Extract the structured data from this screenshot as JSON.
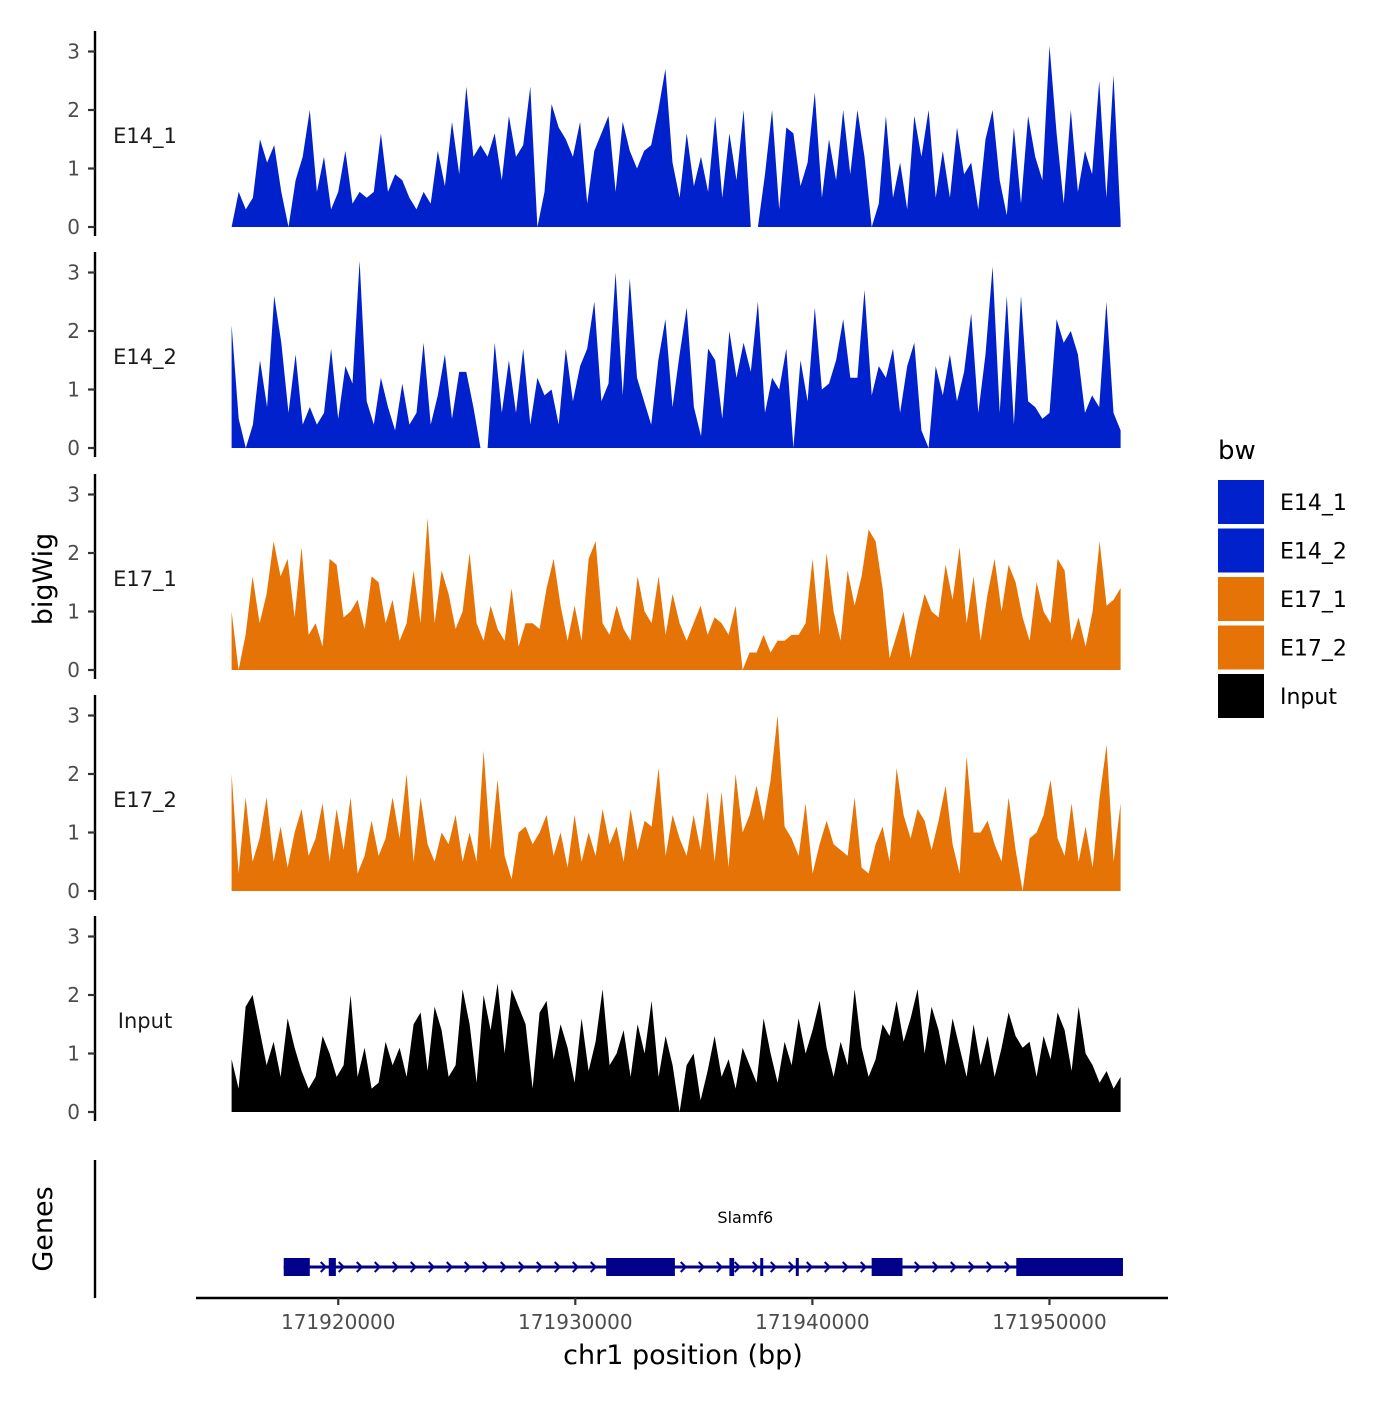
{
  "chart_data": {
    "type": "area",
    "title": "",
    "xlabel": "chr1 position (bp)",
    "ylabel": "bigWig",
    "genes_panel_label": "Genes",
    "xlim": [
      171914000,
      171955000
    ],
    "x_ticks": [
      171920000,
      171930000,
      171940000,
      171950000
    ],
    "x_tick_labels": [
      "171920000",
      "171930000",
      "171940000",
      "171950000"
    ],
    "ylim": [
      0,
      3.3
    ],
    "y_ticks": [
      0,
      1,
      2,
      3
    ],
    "y_tick_labels": [
      "0",
      "1",
      "2",
      "3"
    ],
    "x_range_data": [
      171915500,
      171953000
    ],
    "legend": {
      "title": "bw",
      "position": "right",
      "entries": [
        {
          "name": "E14_1",
          "color": "#0021CC"
        },
        {
          "name": "E14_2",
          "color": "#0021CC"
        },
        {
          "name": "E17_1",
          "color": "#E67305"
        },
        {
          "name": "E17_2",
          "color": "#E67305"
        },
        {
          "name": "Input",
          "color": "#000000"
        }
      ]
    },
    "series": [
      {
        "name": "E14_1",
        "color": "#0021CC",
        "values": [
          0,
          0.6,
          0.3,
          0.5,
          1.5,
          1.1,
          1.4,
          0.6,
          0,
          0.8,
          1.2,
          2.0,
          0.6,
          1.2,
          0.3,
          0.6,
          1.3,
          0.4,
          0.6,
          0.5,
          0.6,
          1.6,
          0.6,
          0.9,
          0.8,
          0.5,
          0.3,
          0.6,
          0.4,
          1.3,
          0.7,
          1.8,
          0.9,
          2.4,
          1.2,
          1.4,
          1.2,
          1.6,
          0.8,
          1.9,
          1.2,
          1.4,
          2.4,
          0,
          0.6,
          2.1,
          1.7,
          1.5,
          1.2,
          1.8,
          0.4,
          1.3,
          1.6,
          1.9,
          0.6,
          1.8,
          1.3,
          1.0,
          1.3,
          1.4,
          2.0,
          2.7,
          1.1,
          0.5,
          1.6,
          0.7,
          1.2,
          0.6,
          1.9,
          0.5,
          1.6,
          0.8,
          2.0,
          0,
          0,
          0.9,
          2.0,
          0.3,
          1.7,
          1.6,
          0.7,
          1.1,
          2.3,
          0.5,
          1.5,
          0.8,
          2.0,
          0.9,
          2.0,
          1.2,
          0,
          0.4,
          1.9,
          0.5,
          1.1,
          0.3,
          1.9,
          1.2,
          2.0,
          0.5,
          1.3,
          0.5,
          1.7,
          0.9,
          1.1,
          0.3,
          1.5,
          2.0,
          0.8,
          0.2,
          1.7,
          0.4,
          1.9,
          1.2,
          0.8,
          3.1,
          1.6,
          0.4,
          2.0,
          0.6,
          1.3,
          0.9,
          2.5,
          0.5,
          2.6,
          0.1
        ]
      },
      {
        "name": "E14_2",
        "color": "#0021CC",
        "values": [
          2.1,
          0.5,
          0,
          0.4,
          1.5,
          0.7,
          2.6,
          1.8,
          0.6,
          1.6,
          0.4,
          0.7,
          0.4,
          0.6,
          1.7,
          0.5,
          1.4,
          1.1,
          3.2,
          0.8,
          0.4,
          1.2,
          0.7,
          0.3,
          1.1,
          0.4,
          0.6,
          1.8,
          0.4,
          0.9,
          1.6,
          0.5,
          1.3,
          1.3,
          0.7,
          0,
          0,
          1.8,
          0.6,
          1.5,
          0.6,
          1.7,
          0.4,
          1.2,
          0.9,
          1.0,
          0.4,
          1.7,
          0.8,
          1.4,
          1.7,
          2.5,
          0.8,
          1.1,
          3.0,
          0.9,
          2.9,
          1.2,
          0.8,
          0.4,
          1.5,
          2.2,
          0.7,
          1.6,
          2.4,
          0.7,
          0.2,
          1.7,
          1.5,
          0.5,
          2.0,
          1.2,
          1.8,
          1.3,
          2.5,
          0.6,
          1.2,
          1.0,
          1.7,
          0,
          1.5,
          0.8,
          2.4,
          1.0,
          1.1,
          1.5,
          2.2,
          1.2,
          1.2,
          2.7,
          0.9,
          1.4,
          1.2,
          1.7,
          0.6,
          1.4,
          1.8,
          0.3,
          0,
          1.4,
          0.9,
          1.6,
          0.8,
          1.3,
          2.3,
          0.6,
          1.6,
          3.1,
          0.6,
          2.6,
          0.4,
          2.6,
          0.8,
          0.7,
          0.5,
          0.6,
          2.2,
          1.8,
          2.0,
          1.6,
          0.6,
          0.9,
          0.7,
          2.5,
          0.6,
          0.3
        ]
      },
      {
        "name": "E17_1",
        "color": "#E67305",
        "values": [
          1.0,
          0,
          0.6,
          1.6,
          0.8,
          1.3,
          2.2,
          1.6,
          1.9,
          0.9,
          2.1,
          0.6,
          0.8,
          0.4,
          1.9,
          1.8,
          0.9,
          1.0,
          1.2,
          0.7,
          1.6,
          1.5,
          0.8,
          1.2,
          0.5,
          0.8,
          1.7,
          0.8,
          2.6,
          0.8,
          1.7,
          1.3,
          0.7,
          1.0,
          2.0,
          0.8,
          0.5,
          1.1,
          0.7,
          0.5,
          1.4,
          0.4,
          0.8,
          0.8,
          0.7,
          1.4,
          1.9,
          1.1,
          0.5,
          1.1,
          0.5,
          1.9,
          2.2,
          0.8,
          0.6,
          1.1,
          0.7,
          0.5,
          1.6,
          1.0,
          0.8,
          1.6,
          0.6,
          1.3,
          0.8,
          0.5,
          0.8,
          1.1,
          0.6,
          0.9,
          0.8,
          0.6,
          1.1,
          0,
          0.3,
          0.3,
          0.6,
          0.3,
          0.5,
          0.5,
          0.6,
          0.6,
          0.8,
          1.9,
          0.6,
          2.0,
          1.0,
          0.5,
          1.7,
          1.1,
          1.6,
          2.4,
          2.2,
          1.4,
          0.2,
          0.6,
          1.0,
          0.2,
          0.8,
          1.3,
          1.0,
          0.9,
          1.8,
          1.2,
          2.1,
          0.8,
          1.6,
          0.5,
          1.3,
          1.9,
          1.0,
          1.8,
          1.5,
          0.9,
          0.5,
          1.5,
          1.0,
          0.8,
          1.9,
          1.7,
          0.5,
          0.9,
          0.4,
          1.0,
          2.2,
          1.1,
          1.2,
          1.4
        ]
      },
      {
        "name": "E17_2",
        "color": "#E67305",
        "values": [
          2.0,
          0.3,
          1.6,
          0.5,
          0.9,
          1.6,
          0.5,
          1.1,
          0.4,
          1.0,
          1.4,
          0.6,
          0.9,
          1.5,
          0.5,
          1.4,
          0.7,
          1.6,
          0.3,
          0.6,
          1.2,
          0.6,
          0.9,
          1.6,
          0.9,
          2.0,
          0.5,
          1.6,
          0.8,
          0.5,
          1.0,
          0.8,
          1.3,
          0.5,
          1.0,
          0.5,
          2.4,
          0.7,
          1.9,
          0.6,
          0.2,
          1.0,
          1.1,
          0.8,
          1.0,
          1.3,
          0.6,
          1.0,
          0.4,
          1.3,
          0.5,
          1.0,
          0.6,
          1.4,
          0.8,
          1.1,
          0.5,
          1.4,
          0.7,
          1.2,
          1.1,
          2.1,
          0.6,
          1.3,
          0.9,
          0.6,
          1.3,
          0.7,
          1.7,
          0.5,
          1.7,
          0.4,
          2.0,
          1.0,
          1.3,
          1.8,
          1.2,
          1.9,
          3.0,
          1.1,
          0.9,
          0.6,
          1.5,
          0.3,
          0.8,
          1.2,
          0.8,
          0.7,
          0.6,
          1.6,
          0.4,
          0.3,
          0.8,
          1.1,
          0.5,
          2.1,
          1.3,
          0.9,
          1.4,
          1.2,
          0.7,
          1.2,
          1.8,
          0.8,
          0.3,
          2.3,
          1.0,
          1.0,
          1.2,
          0.8,
          0.5,
          1.6,
          0.7,
          0,
          0.9,
          1.0,
          1.3,
          1.9,
          0.9,
          0.6,
          1.5,
          0.5,
          1.1,
          0.4,
          1.6,
          2.5,
          0.5,
          1.5
        ]
      },
      {
        "name": "Input",
        "color": "#000000",
        "values": [
          0.9,
          0.4,
          1.8,
          2.0,
          1.4,
          0.8,
          1.2,
          0.6,
          1.6,
          1.1,
          0.7,
          0.4,
          0.6,
          1.3,
          1.0,
          0.6,
          0.8,
          2.0,
          0.6,
          1.1,
          0.4,
          0.5,
          1.2,
          0.8,
          1.1,
          0.6,
          1.5,
          1.7,
          0.7,
          1.8,
          1.4,
          0.6,
          0.8,
          2.1,
          1.5,
          0.5,
          2.0,
          1.4,
          2.2,
          1.0,
          2.1,
          1.8,
          1.5,
          0.4,
          1.7,
          1.9,
          0.9,
          1.5,
          1.1,
          0.5,
          1.6,
          0.7,
          1.2,
          2.1,
          0.8,
          1.0,
          1.4,
          0.6,
          1.5,
          1.0,
          1.9,
          0.6,
          1.3,
          0.8,
          0,
          0.8,
          1.0,
          0.2,
          0.7,
          1.3,
          0.6,
          0.9,
          0.4,
          1.1,
          0.8,
          0.5,
          1.6,
          1.0,
          0.5,
          1.2,
          0.8,
          1.6,
          1.0,
          1.4,
          1.9,
          1.1,
          0.6,
          1.2,
          0.8,
          2.1,
          1.1,
          0.6,
          0.9,
          1.5,
          1.3,
          1.9,
          1.2,
          1.6,
          2.1,
          1.0,
          1.8,
          1.4,
          0.8,
          1.6,
          1.1,
          0.6,
          1.5,
          0.8,
          1.3,
          0.6,
          1.1,
          1.7,
          1.3,
          1.1,
          1.2,
          0.6,
          1.3,
          0.9,
          1.7,
          1.4,
          0.7,
          1.8,
          1.0,
          0.8,
          0.5,
          0.7,
          0.4,
          0.6
        ]
      }
    ],
    "gene_track": {
      "gene_name": "Slamf6",
      "strand": "+",
      "color": "#00008B",
      "start": 171917700,
      "end": 171953100,
      "exons": [
        [
          171917700,
          171918800
        ],
        [
          171919600,
          171919900
        ],
        [
          171931300,
          171934200
        ],
        [
          171936500,
          171936700
        ],
        [
          171937800,
          171937900
        ],
        [
          171939300,
          171939400
        ],
        [
          171942500,
          171943800
        ],
        [
          171948600,
          171953100
        ]
      ]
    }
  }
}
